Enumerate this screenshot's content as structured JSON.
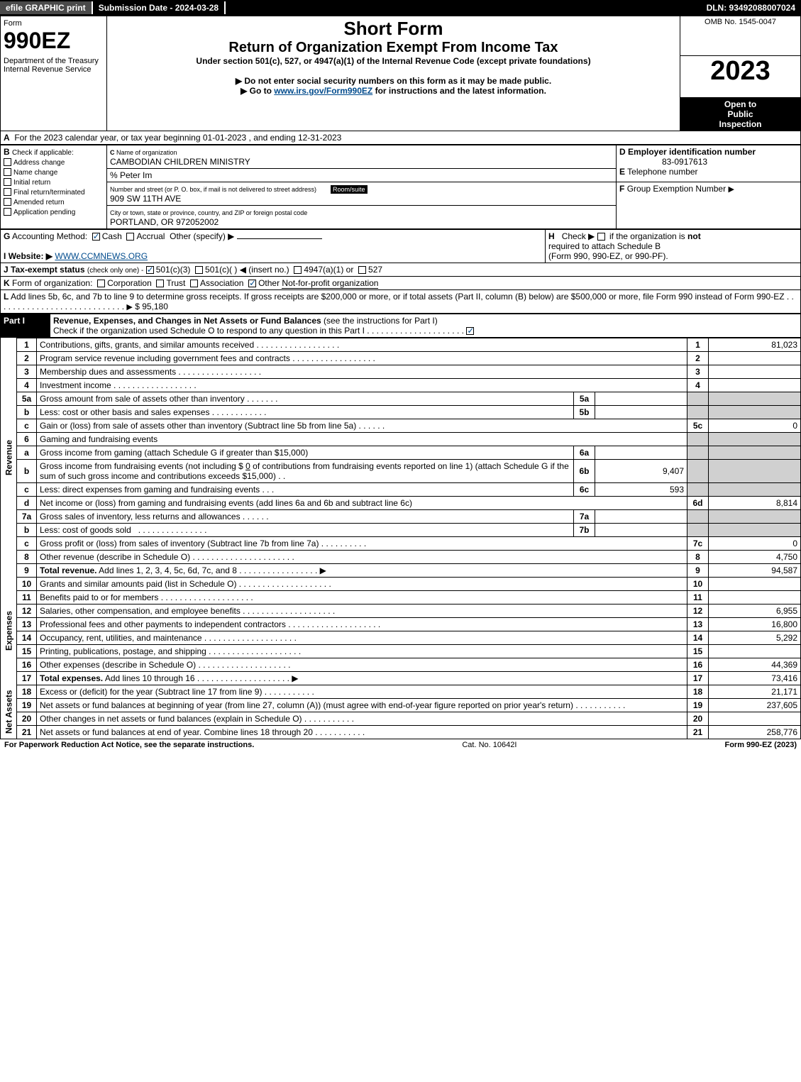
{
  "top_bar": {
    "efile": "efile GRAPHIC print",
    "submission": "Submission Date - 2024-03-28",
    "dln": "DLN: 93492088007024"
  },
  "header": {
    "form_label": "Form",
    "form_number": "990EZ",
    "dept1": "Department of the Treasury",
    "dept2": "Internal Revenue Service",
    "title_main": "Short Form",
    "title_sub1": "Return of Organization Exempt From Income Tax",
    "title_sub2": "Under section 501(c), 527, or 4947(a)(1) of the Internal Revenue Code (except private foundations)",
    "instr1": "▶ Do not enter social security numbers on this form as it may be made public.",
    "instr2_pre": "▶ Go to ",
    "instr2_link": "www.irs.gov/Form990EZ",
    "instr2_post": " for instructions and the latest information.",
    "omb": "OMB No. 1545-0047",
    "tax_year": "2023",
    "inspection1": "Open to",
    "inspection2": "Public",
    "inspection3": "Inspection"
  },
  "section_a": {
    "text_pre": "A",
    "text": "For the 2023 calendar year, or tax year beginning 01-01-2023 , and ending 12-31-2023"
  },
  "section_b": {
    "label": "B",
    "check_if": "Check if applicable:",
    "items": [
      {
        "label": "Address change",
        "checked": false
      },
      {
        "label": "Name change",
        "checked": false
      },
      {
        "label": "Initial return",
        "checked": false
      },
      {
        "label": "Final return/terminated",
        "checked": false
      },
      {
        "label": "Amended return",
        "checked": false
      },
      {
        "label": "Application pending",
        "checked": false
      }
    ]
  },
  "section_c": {
    "label": "C",
    "name_label": "Name of organization",
    "name": "CAMBODIAN CHILDREN MINISTRY",
    "care_of": "% Peter Im",
    "street_label": "Number and street (or P. O. box, if mail is not delivered to street address)",
    "room_label": "Room/suite",
    "street": "909 SW 11TH AVE",
    "city_label": "City or town, state or province, country, and ZIP or foreign postal code",
    "city": "PORTLAND, OR  972052002"
  },
  "section_d": {
    "label": "D",
    "text": "Employer identification number",
    "value": "83-0917613"
  },
  "section_e": {
    "label": "E",
    "text": "Telephone number",
    "value": ""
  },
  "section_f": {
    "label": "F",
    "text": "Group Exemption Number",
    "arrow": "▶"
  },
  "section_g": {
    "label": "G",
    "text": "Accounting Method:",
    "cash": "Cash",
    "accrual": "Accrual",
    "other": "Other (specify) ▶",
    "cash_checked": true
  },
  "section_h": {
    "label": "H",
    "text1": "Check ▶",
    "text2": "if the organization is",
    "text3": "not",
    "text4": "required to attach Schedule B",
    "text5": "(Form 990, 990-EZ, or 990-PF)."
  },
  "section_i": {
    "label": "I",
    "text": "Website: ▶",
    "value": "WWW.CCMNEWS.ORG"
  },
  "section_j": {
    "label": "J",
    "text": "Tax-exempt status",
    "small": "(check only one) -",
    "opt1": "501(c)(3)",
    "opt2": "501(c)(  ) ◀ (insert no.)",
    "opt3": "4947(a)(1) or",
    "opt4": "527",
    "opt1_checked": true
  },
  "section_k": {
    "label": "K",
    "text": "Form of organization:",
    "corp": "Corporation",
    "trust": "Trust",
    "assoc": "Association",
    "other": "Other",
    "other_val": "Not-for-profit organization",
    "other_checked": true
  },
  "section_l": {
    "label": "L",
    "text1": "Add lines 5b, 6c, and 7b to line 9 to determine gross receipts. If gross receipts are $200,000 or more, or if total assets (Part II, column (B) below) are $500,000 or more, file Form 990 instead of Form 990-EZ",
    "arrow": "▶",
    "value": "$ 95,180"
  },
  "part1": {
    "label": "Part I",
    "title": "Revenue, Expenses, and Changes in Net Assets or Fund Balances",
    "subtitle": "(see the instructions for Part I)",
    "check_text": "Check if the organization used Schedule O to respond to any question in this Part I",
    "checked": true
  },
  "revenue": {
    "label": "Revenue",
    "lines": [
      {
        "no": "1",
        "desc": "Contributions, gifts, grants, and similar amounts received",
        "amt_no": "1",
        "amt": "81,023"
      },
      {
        "no": "2",
        "desc": "Program service revenue including government fees and contracts",
        "amt_no": "2",
        "amt": ""
      },
      {
        "no": "3",
        "desc": "Membership dues and assessments",
        "amt_no": "3",
        "amt": ""
      },
      {
        "no": "4",
        "desc": "Investment income",
        "amt_no": "4",
        "amt": ""
      }
    ],
    "line5a": {
      "no": "5a",
      "desc": "Gross amount from sale of assets other than inventory",
      "sub_no": "5a",
      "sub_amt": ""
    },
    "line5b": {
      "no": "b",
      "desc": "Less: cost or other basis and sales expenses",
      "sub_no": "5b",
      "sub_amt": ""
    },
    "line5c": {
      "no": "c",
      "desc": "Gain or (loss) from sale of assets other than inventory (Subtract line 5b from line 5a)",
      "amt_no": "5c",
      "amt": "0"
    },
    "line6": {
      "no": "6",
      "desc": "Gaming and fundraising events"
    },
    "line6a": {
      "no": "a",
      "desc": "Gross income from gaming (attach Schedule G if greater than $15,000)",
      "sub_no": "6a",
      "sub_amt": ""
    },
    "line6b": {
      "no": "b",
      "desc1": "Gross income from fundraising events (not including $",
      "val": "0",
      "desc2": "of contributions from fundraising events reported on line 1) (attach Schedule G if the sum of such gross income and contributions exceeds $15,000)",
      "sub_no": "6b",
      "sub_amt": "9,407"
    },
    "line6c": {
      "no": "c",
      "desc": "Less: direct expenses from gaming and fundraising events",
      "sub_no": "6c",
      "sub_amt": "593"
    },
    "line6d": {
      "no": "d",
      "desc": "Net income or (loss) from gaming and fundraising events (add lines 6a and 6b and subtract line 6c)",
      "amt_no": "6d",
      "amt": "8,814"
    },
    "line7a": {
      "no": "7a",
      "desc": "Gross sales of inventory, less returns and allowances",
      "sub_no": "7a",
      "sub_amt": ""
    },
    "line7b": {
      "no": "b",
      "desc": "Less: cost of goods sold",
      "sub_no": "7b",
      "sub_amt": ""
    },
    "line7c": {
      "no": "c",
      "desc": "Gross profit or (loss) from sales of inventory (Subtract line 7b from line 7a)",
      "amt_no": "7c",
      "amt": "0"
    },
    "line8": {
      "no": "8",
      "desc": "Other revenue (describe in Schedule O)",
      "amt_no": "8",
      "amt": "4,750"
    },
    "line9": {
      "no": "9",
      "desc": "Total revenue.",
      "desc2": "Add lines 1, 2, 3, 4, 5c, 6d, 7c, and 8",
      "amt_no": "9",
      "amt": "94,587"
    }
  },
  "expenses": {
    "label": "Expenses",
    "lines": [
      {
        "no": "10",
        "desc": "Grants and similar amounts paid (list in Schedule O)",
        "amt_no": "10",
        "amt": ""
      },
      {
        "no": "11",
        "desc": "Benefits paid to or for members",
        "amt_no": "11",
        "amt": ""
      },
      {
        "no": "12",
        "desc": "Salaries, other compensation, and employee benefits",
        "amt_no": "12",
        "amt": "6,955"
      },
      {
        "no": "13",
        "desc": "Professional fees and other payments to independent contractors",
        "amt_no": "13",
        "amt": "16,800"
      },
      {
        "no": "14",
        "desc": "Occupancy, rent, utilities, and maintenance",
        "amt_no": "14",
        "amt": "5,292"
      },
      {
        "no": "15",
        "desc": "Printing, publications, postage, and shipping",
        "amt_no": "15",
        "amt": ""
      },
      {
        "no": "16",
        "desc": "Other expenses (describe in Schedule O)",
        "amt_no": "16",
        "amt": "44,369"
      },
      {
        "no": "17",
        "desc": "Total expenses.",
        "desc2": "Add lines 10 through 16",
        "amt_no": "17",
        "amt": "73,416"
      }
    ]
  },
  "netassets": {
    "label": "Net Assets",
    "lines": [
      {
        "no": "18",
        "desc": "Excess or (deficit) for the year (Subtract line 17 from line 9)",
        "amt_no": "18",
        "amt": "21,171"
      },
      {
        "no": "19",
        "desc": "Net assets or fund balances at beginning of year (from line 27, column (A)) (must agree with end-of-year figure reported on prior year's return)",
        "amt_no": "19",
        "amt": "237,605"
      },
      {
        "no": "20",
        "desc": "Other changes in net assets or fund balances (explain in Schedule O)",
        "amt_no": "20",
        "amt": ""
      },
      {
        "no": "21",
        "desc": "Net assets or fund balances at end of year. Combine lines 18 through 20",
        "amt_no": "21",
        "amt": "258,776"
      }
    ]
  },
  "footer": {
    "left": "For Paperwork Reduction Act Notice, see the separate instructions.",
    "center": "Cat. No. 10642I",
    "right_pre": "Form ",
    "right_form": "990-EZ",
    "right_post": " (2023)"
  }
}
